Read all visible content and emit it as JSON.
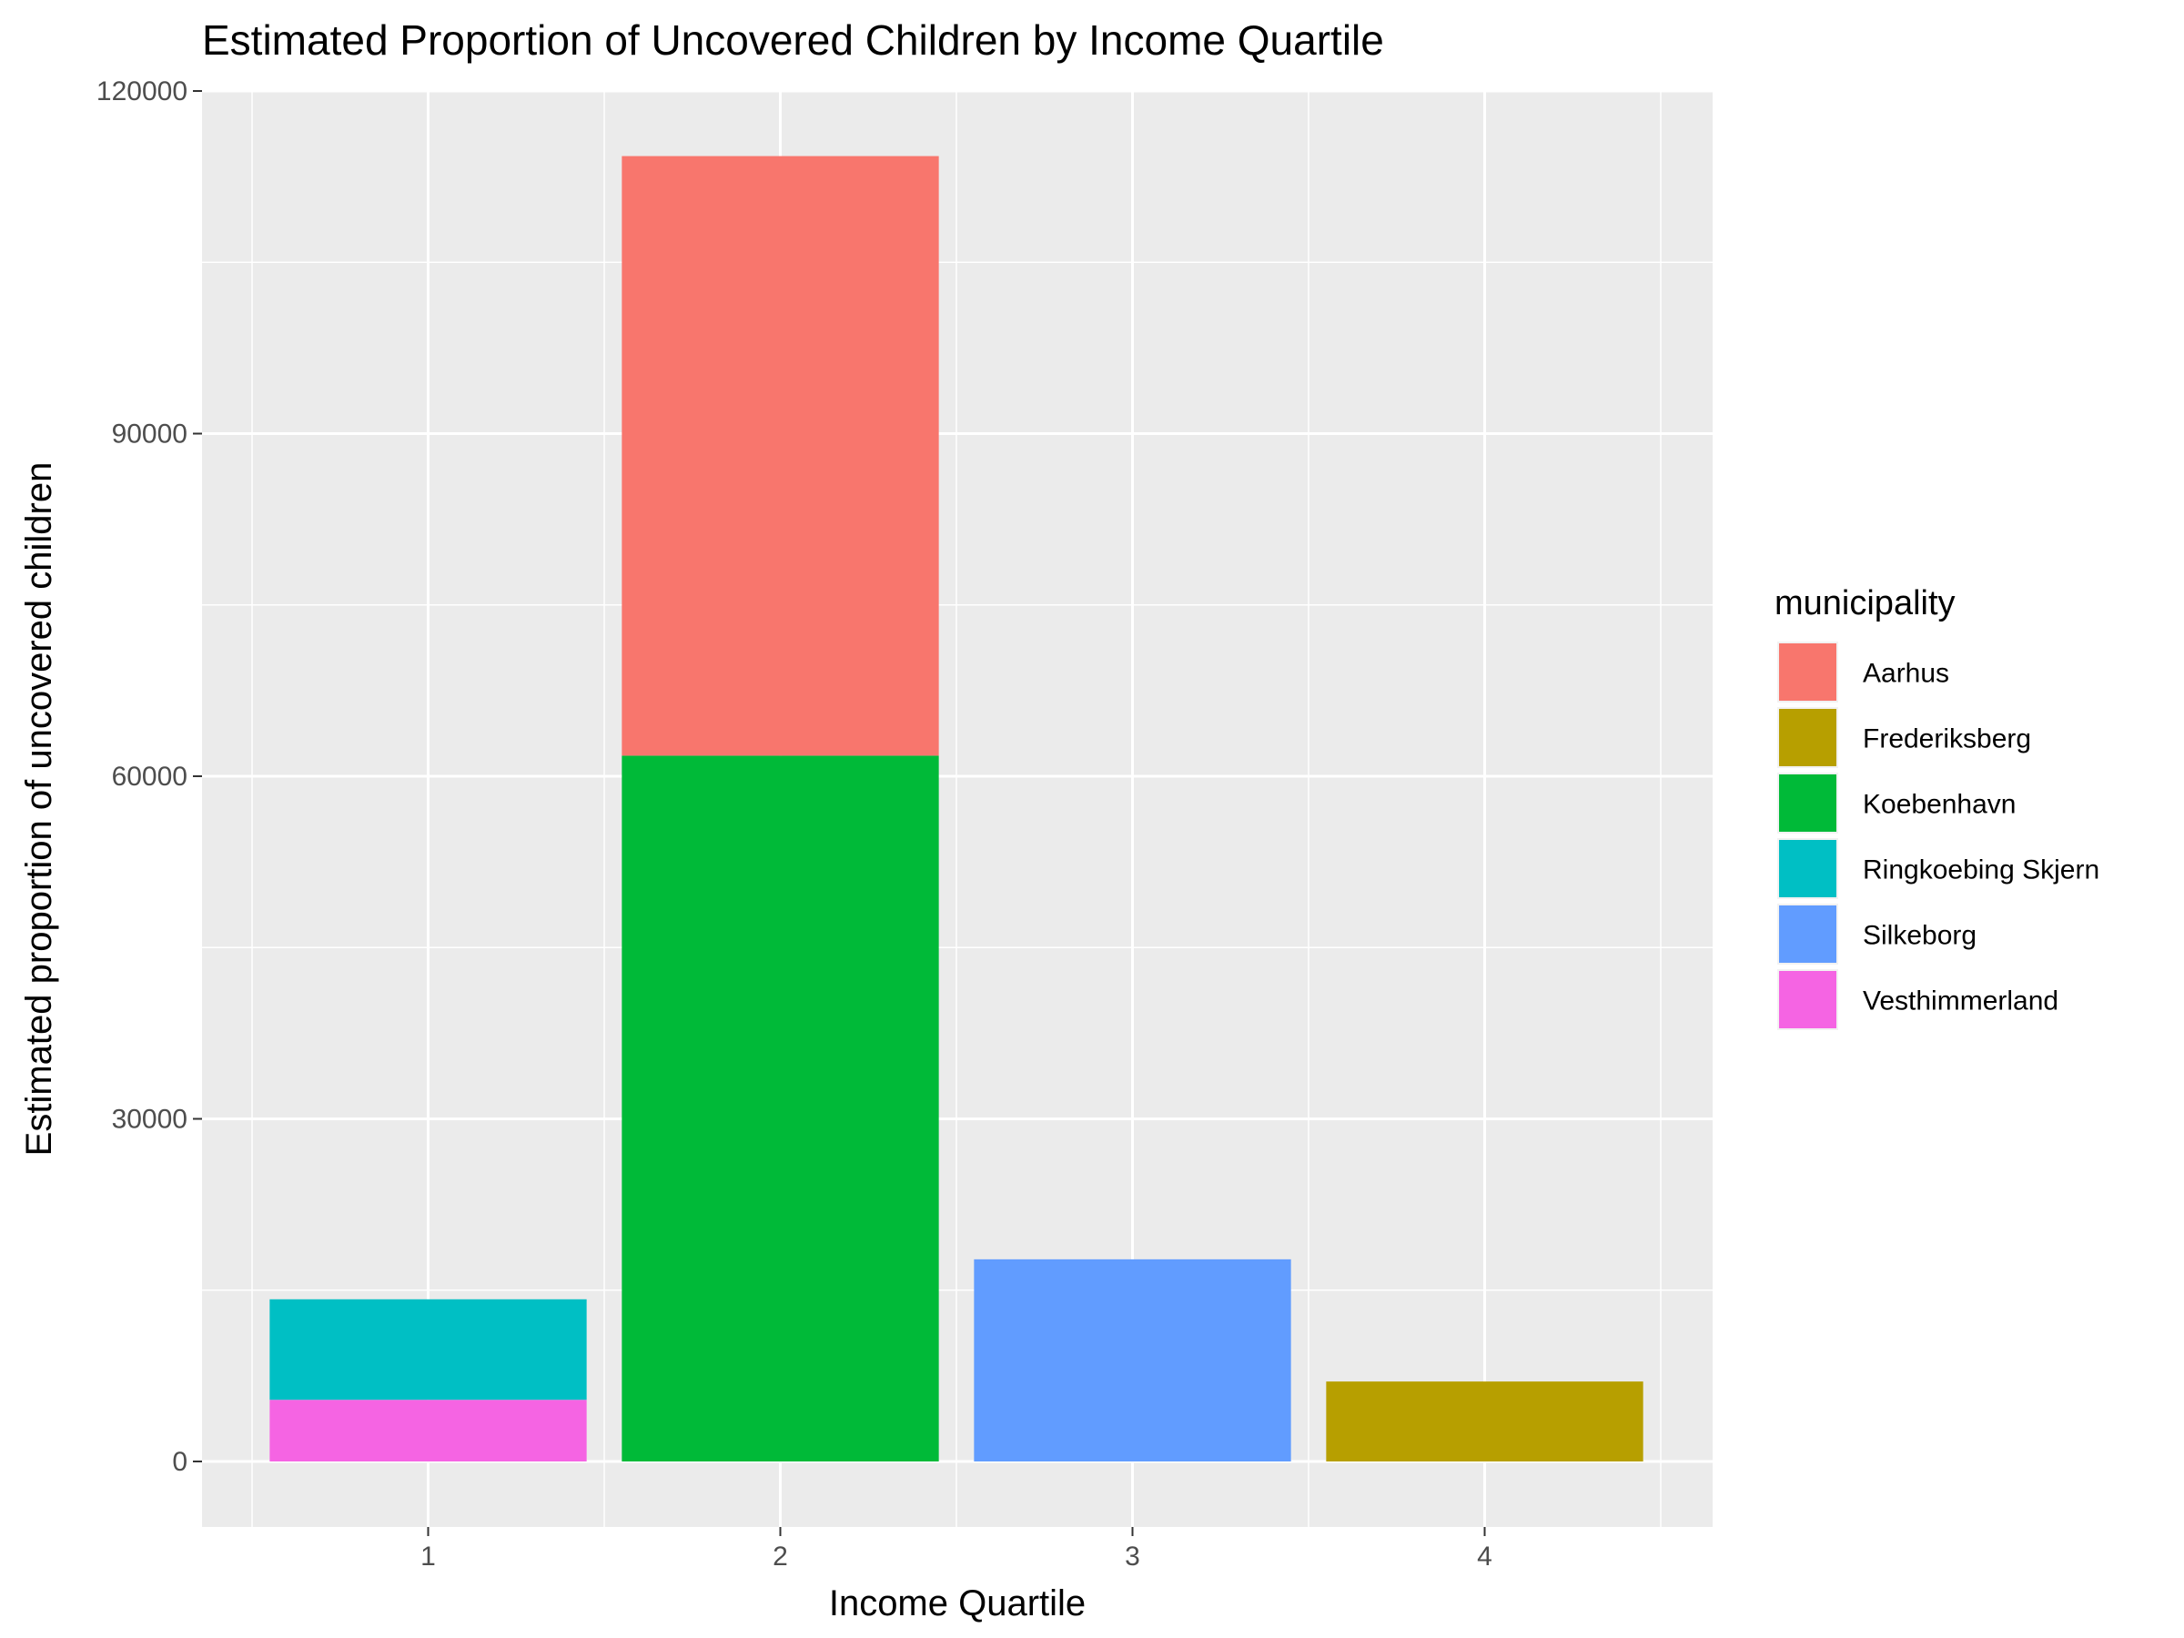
{
  "chart_data": {
    "type": "bar",
    "stacked": true,
    "title": "Estimated Proportion of Uncovered Children by Income Quartile",
    "xlabel": "Income Quartile",
    "ylabel": "Estimated proportion of uncovered children",
    "categories": [
      "1",
      "2",
      "3",
      "4"
    ],
    "ylim": [
      0,
      120000
    ],
    "yticks": [
      "0",
      "30000",
      "60000",
      "90000",
      "120000"
    ],
    "grid": true,
    "legend_title": "municipality",
    "legend_position": "right",
    "series": [
      {
        "name": "Aarhus",
        "color": "#F8766D",
        "values": [
          0,
          52500,
          0,
          0
        ]
      },
      {
        "name": "Frederiksberg",
        "color": "#B79F00",
        "values": [
          0,
          0,
          0,
          7000
        ]
      },
      {
        "name": "Koebenhavn",
        "color": "#00BA38",
        "values": [
          0,
          61800,
          0,
          0
        ]
      },
      {
        "name": "Ringkoebing Skjern",
        "color": "#00BFC4",
        "values": [
          8800,
          0,
          0,
          0
        ]
      },
      {
        "name": "Silkeborg",
        "color": "#619CFF",
        "values": [
          0,
          0,
          17700,
          0
        ]
      },
      {
        "name": "Vesthimmerland",
        "color": "#F564E3",
        "values": [
          5400,
          0,
          0,
          0
        ]
      }
    ]
  }
}
